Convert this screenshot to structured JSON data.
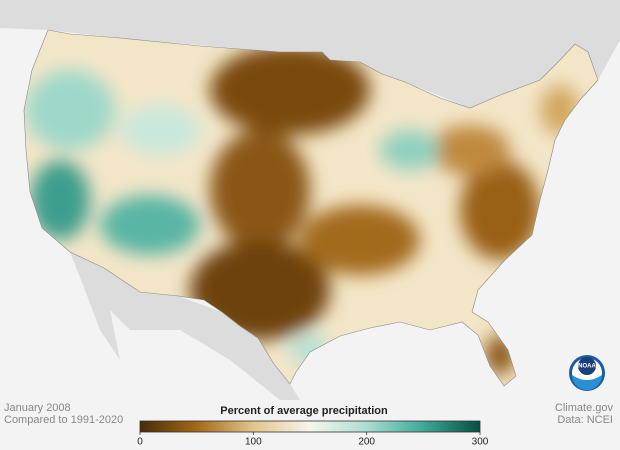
{
  "caption": {
    "date": "January 2008",
    "baseline": "Compared to 1991-2020"
  },
  "colorbar": {
    "title": "Percent of average precipitation",
    "range": [
      0,
      300
    ],
    "ticks": [
      0,
      100,
      200,
      300
    ],
    "colors": [
      "#4a2c05",
      "#a3681a",
      "#e3c58a",
      "#f8f5ec",
      "#a9ded2",
      "#3fa898",
      "#064f43"
    ]
  },
  "credit": {
    "site": "Climate.gov",
    "source": "Data: NCEI"
  },
  "logo": "NOAA"
}
